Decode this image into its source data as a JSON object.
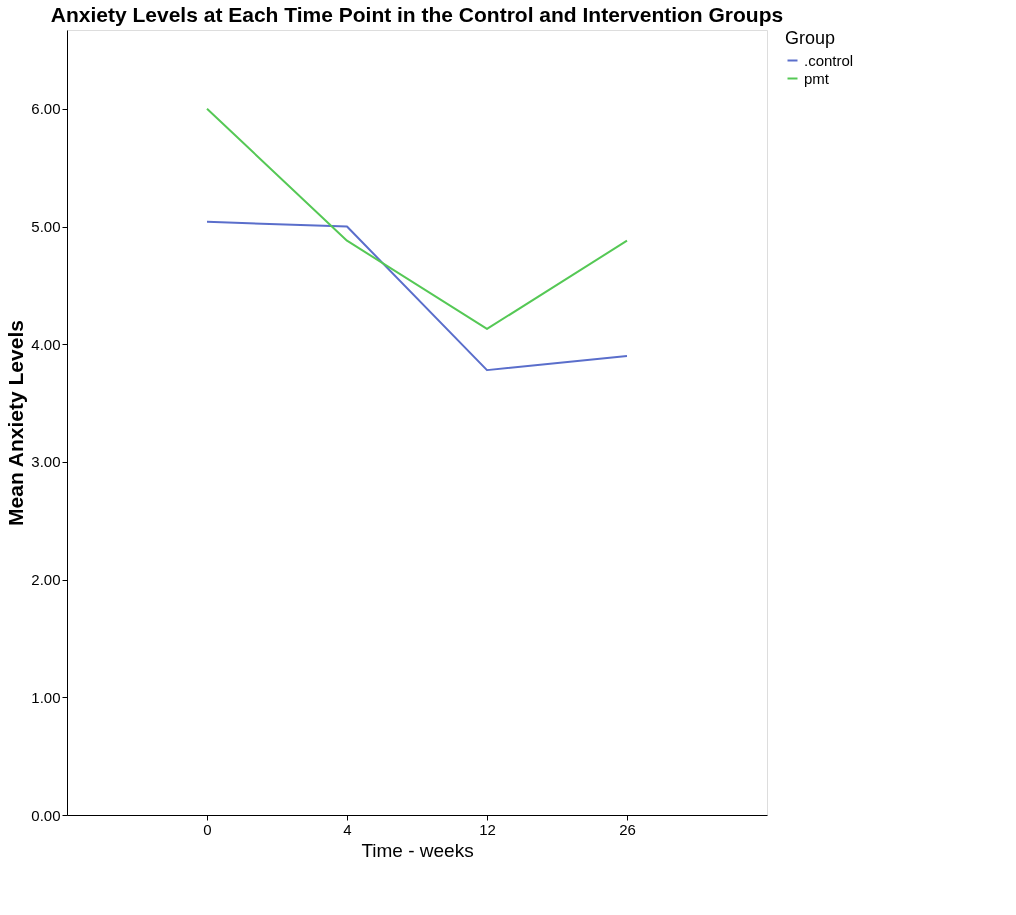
{
  "chart_data": {
    "type": "line",
    "title": "Anxiety Levels at Each Time Point in the Control and Intervention Groups",
    "xlabel": "Time - weeks",
    "ylabel": "Mean Anxiety Levels",
    "legend_title": "Group",
    "categories": [
      "0",
      "4",
      "12",
      "26"
    ],
    "series": [
      {
        "name": ".control",
        "color": "#5a6ecb",
        "values": [
          5.04,
          5.0,
          3.78,
          3.9
        ]
      },
      {
        "name": "pmt",
        "color": "#55c855",
        "values": [
          6.0,
          4.88,
          4.13,
          4.88
        ]
      }
    ],
    "ylim": [
      0,
      6.67
    ],
    "yticks": [
      {
        "value": 0,
        "label": "0.00"
      },
      {
        "value": 1,
        "label": "1.00"
      },
      {
        "value": 2,
        "label": "2.00"
      },
      {
        "value": 3,
        "label": "3.00"
      },
      {
        "value": 4,
        "label": "4.00"
      },
      {
        "value": 5,
        "label": "5.00"
      },
      {
        "value": 6,
        "label": "6.00"
      }
    ],
    "grid": false,
    "legend": "top right",
    "marker": "none",
    "line_style": "solid"
  }
}
